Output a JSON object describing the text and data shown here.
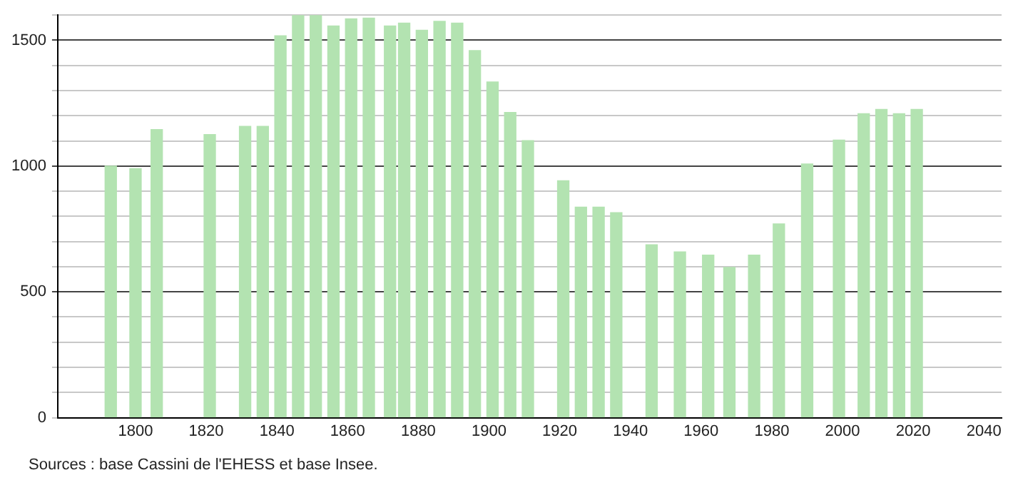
{
  "chart_data": {
    "type": "bar",
    "color": "#b3e3b1",
    "x": [
      1793,
      1800,
      1806,
      1821,
      1831,
      1836,
      1841,
      1846,
      1851,
      1856,
      1861,
      1866,
      1872,
      1876,
      1881,
      1886,
      1891,
      1896,
      1901,
      1906,
      1911,
      1921,
      1926,
      1931,
      1936,
      1946,
      1954,
      1962,
      1968,
      1975,
      1982,
      1990,
      1999,
      2006,
      2011,
      2016,
      2021
    ],
    "values": [
      1000,
      990,
      1145,
      1125,
      1158,
      1158,
      1518,
      1600,
      1600,
      1557,
      1585,
      1588,
      1557,
      1568,
      1540,
      1575,
      1568,
      1459,
      1334,
      1213,
      1101,
      942,
      837,
      837,
      815,
      687,
      659,
      646,
      597,
      646,
      770,
      1008,
      1103,
      1208,
      1225,
      1208,
      1225
    ],
    "xlim": [
      1778,
      2045
    ],
    "xticks": [
      1800,
      1820,
      1840,
      1860,
      1880,
      1900,
      1920,
      1940,
      1960,
      1980,
      2000,
      2020,
      2040
    ],
    "ylim": [
      0,
      1600
    ],
    "yticks": [
      0,
      {
        "value": 100,
        "label": null
      },
      {
        "value": 200,
        "label": null
      },
      {
        "value": 300,
        "label": null
      },
      {
        "value": 400,
        "label": null
      },
      500,
      {
        "value": 600,
        "label": null
      },
      {
        "value": 700,
        "label": null
      },
      {
        "value": 800,
        "label": null
      },
      {
        "value": 900,
        "label": null
      },
      1000,
      {
        "value": 1100,
        "label": null
      },
      {
        "value": 1200,
        "label": null
      },
      {
        "value": 1300,
        "label": null
      },
      {
        "value": 1400,
        "label": null
      },
      1500,
      {
        "value": 1600,
        "label": null
      }
    ],
    "grid": "y",
    "legend": false,
    "annotations": [
      "Sources : base Cassini de l'EHESS et base Insee."
    ]
  }
}
